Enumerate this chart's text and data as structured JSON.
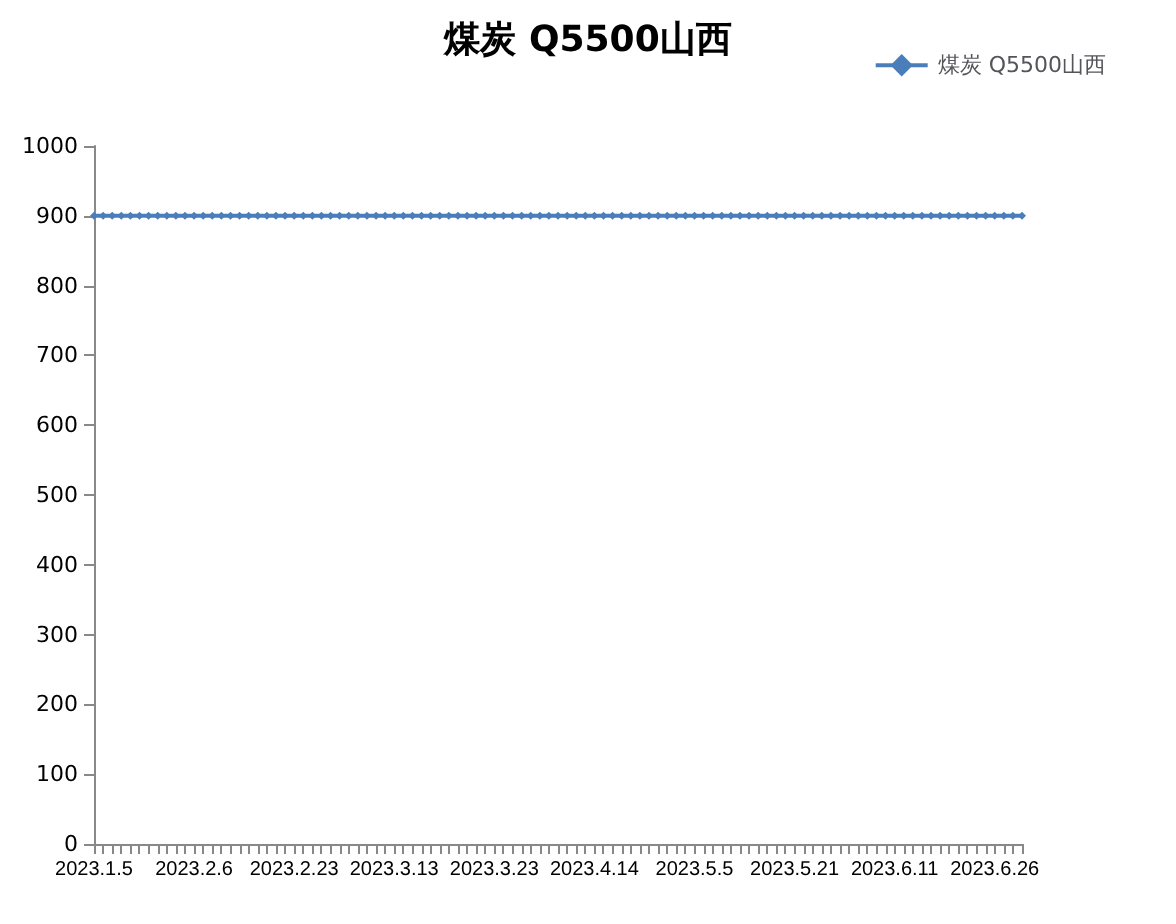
{
  "chart_data": {
    "type": "line",
    "title": "煤炭 Q5500山西",
    "categories": [
      "2023.1.5",
      null,
      null,
      null,
      null,
      null,
      null,
      null,
      null,
      null,
      null,
      "2023.2.6",
      null,
      null,
      null,
      null,
      null,
      null,
      null,
      null,
      null,
      null,
      "2023.2.23",
      null,
      null,
      null,
      null,
      null,
      null,
      null,
      null,
      null,
      null,
      "2023.3.13",
      null,
      null,
      null,
      null,
      null,
      null,
      null,
      null,
      null,
      null,
      "2023.3.23",
      null,
      null,
      null,
      null,
      null,
      null,
      null,
      null,
      null,
      null,
      "2023.4.14",
      null,
      null,
      null,
      null,
      null,
      null,
      null,
      null,
      null,
      null,
      "2023.5.5",
      null,
      null,
      null,
      null,
      null,
      null,
      null,
      null,
      null,
      null,
      "2023.5.21",
      null,
      null,
      null,
      null,
      null,
      null,
      null,
      null,
      null,
      null,
      "2023.6.11",
      null,
      null,
      null,
      null,
      null,
      null,
      null,
      null,
      null,
      null,
      "2023.6.26",
      null,
      null,
      null
    ],
    "series": [
      {
        "name": "煤炭 Q5500山西",
        "color": "#4a7ebb",
        "values": [
          900,
          900,
          900,
          900,
          900,
          900,
          900,
          900,
          900,
          900,
          900,
          900,
          900,
          900,
          900,
          900,
          900,
          900,
          900,
          900,
          900,
          900,
          900,
          900,
          900,
          900,
          900,
          900,
          900,
          900,
          900,
          900,
          900,
          900,
          900,
          900,
          900,
          900,
          900,
          900,
          900,
          900,
          900,
          900,
          900,
          900,
          900,
          900,
          900,
          900,
          900,
          900,
          900,
          900,
          900,
          900,
          900,
          900,
          900,
          900,
          900,
          900,
          900,
          900,
          900,
          900,
          900,
          900,
          900,
          900,
          900,
          900,
          900,
          900,
          900,
          900,
          900,
          900,
          900,
          900,
          900,
          900,
          900,
          900,
          900,
          900,
          900,
          900,
          900,
          900,
          900,
          900,
          900,
          900,
          900,
          900,
          900,
          900,
          900,
          900,
          900,
          900,
          900
        ]
      }
    ],
    "ylim": [
      0,
      1000
    ],
    "yticks": [
      0,
      100,
      200,
      300,
      400,
      500,
      600,
      700,
      800,
      900,
      1000
    ],
    "grid": false,
    "legend": "top right",
    "marker": "diamond",
    "line_style": "solid"
  }
}
